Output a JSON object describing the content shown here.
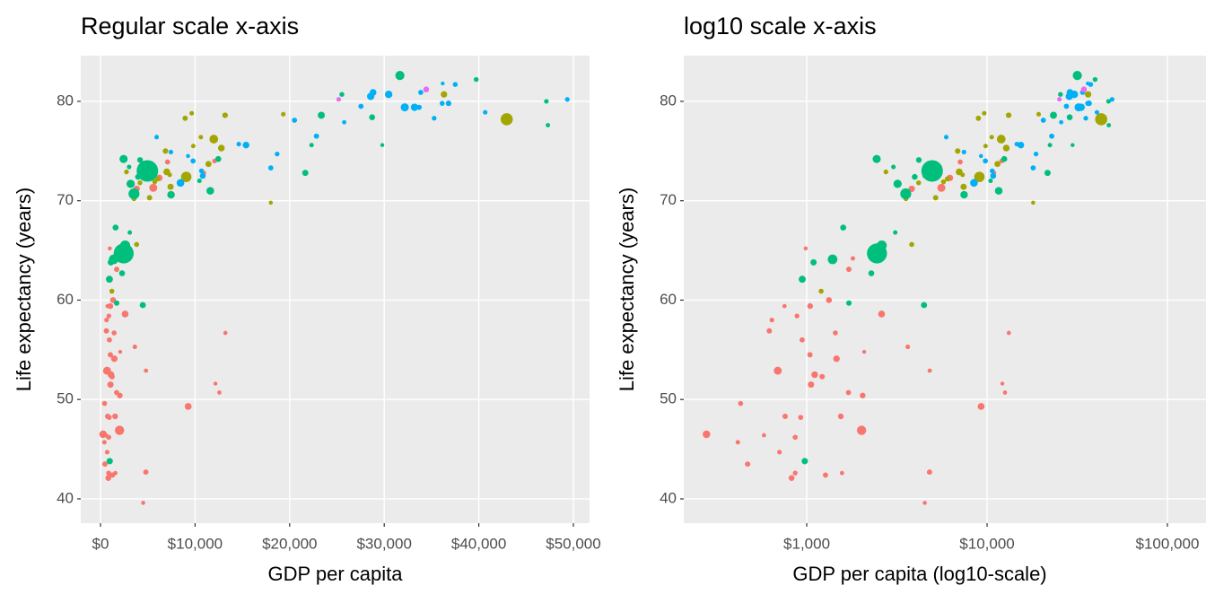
{
  "chart_data": [
    {
      "type": "scatter",
      "title": "Regular scale x-axis",
      "xlabel": "GDP per capita",
      "ylabel": "Life expectancy (years)",
      "xlim": [
        -2087,
        51708
      ],
      "ylim": [
        37.56,
        84.6
      ],
      "xticks": [
        {
          "value": 0,
          "label": "$0"
        },
        {
          "value": 10000,
          "label": "$10,000"
        },
        {
          "value": 20000,
          "label": "$20,000"
        },
        {
          "value": 30000,
          "label": "$30,000"
        },
        {
          "value": 40000,
          "label": "$40,000"
        },
        {
          "value": 50000,
          "label": "$50,000"
        }
      ],
      "yticks": [
        40,
        50,
        60,
        70,
        80
      ],
      "grid": true,
      "series": [
        {
          "color": "#F8766D",
          "x": [
            6223,
            4797,
            1441,
            12570,
            1217,
            430,
            2042,
            706,
            1704,
            986,
            278,
            3633,
            1545,
            2082,
            5581,
            12154,
            641,
            691,
            13206,
            753,
            1328,
            943,
            579,
            1463,
            1569,
            415,
            12057,
            1044,
            759,
            1042,
            1803,
            10957,
            3820,
            824,
            4811,
            620,
            2014,
            863,
            1712,
            863,
            926,
            9270,
            2602,
            4513,
            1107,
            883,
            7093,
            1056,
            1271,
            470
          ],
          "values": [
            72.3,
            42.7,
            56.7,
            50.7,
            52.3,
            49.6,
            50.4,
            44.7,
            50.7,
            65.2,
            46.5,
            55.3,
            48.3,
            54.8,
            71.3,
            51.6,
            58.0,
            52.9,
            56.7,
            59.4,
            60.0,
            56.0,
            46.4,
            54.1,
            42.6,
            45.7,
            74.0,
            59.4,
            48.3,
            54.5,
            64.2,
            72.8,
            71.2,
            42.1,
            52.9,
            56.9,
            46.9,
            46.2,
            63.1,
            42.6,
            48.2,
            49.3,
            58.6,
            39.6,
            52.5,
            58.4,
            73.9,
            51.5,
            42.4,
            43.5
          ],
          "sizes": [
            33,
            12,
            8,
            1.6,
            14,
            8,
            18,
            4,
            10,
            0.7,
            64,
            4,
            18,
            0.5,
            80,
            0.55,
            5,
            77,
            1.5,
            1.7,
            23,
            10,
            1.5,
            35,
            2,
            3,
            6,
            19,
            13,
            12,
            3,
            1.25,
            33,
            20,
            2,
            12.9,
            135,
            9,
            12,
            6,
            9,
            44,
            42,
            1.1,
            38,
            5.7,
            10,
            29,
            11.7,
            12
          ]
        },
        {
          "color": "#A3A500",
          "x": [
            12779,
            3822,
            9066,
            36319,
            13172,
            7007,
            9645,
            8948,
            6025,
            6873,
            5728,
            5186,
            1202,
            3548,
            7321,
            11978,
            2749,
            9809,
            4173,
            7409,
            19329,
            18009,
            42952,
            10611,
            11416
          ],
          "values": [
            75.3,
            65.6,
            72.4,
            80.7,
            78.6,
            72.9,
            78.8,
            78.3,
            72.2,
            75.0,
            71.9,
            70.3,
            60.9,
            70.2,
            72.6,
            76.2,
            72.9,
            75.5,
            71.8,
            71.4,
            78.7,
            69.8,
            78.2,
            76.4,
            73.7
          ],
          "sizes": [
            40,
            9,
            190,
            33,
            16,
            44,
            4,
            11,
            9,
            14,
            7,
            13,
            8.5,
            7.5,
            2.8,
            109,
            5.7,
            3.2,
            6.7,
            29,
            4,
            1,
            301,
            3.4,
            26
          ]
        },
        {
          "color": "#00BF7D",
          "x": [
            975,
            29796,
            1391,
            1714,
            4959,
            39725,
            2452,
            3541,
            11606,
            4471,
            25523,
            31656,
            4519,
            1593,
            23348,
            47307,
            10461,
            12452,
            3096,
            944,
            1091,
            22316,
            2606,
            3190,
            21655,
            47143,
            3970,
            4185,
            28718,
            7458,
            2442,
            3025,
            2281
          ],
          "values": [
            43.8,
            75.6,
            64.1,
            59.7,
            73.0,
            82.2,
            64.7,
            70.7,
            71.0,
            59.5,
            80.7,
            82.6,
            72.5,
            67.3,
            78.6,
            77.6,
            72.0,
            74.2,
            66.8,
            62.1,
            63.8,
            75.6,
            65.5,
            71.7,
            72.8,
            80.0,
            72.4,
            74.1,
            78.4,
            70.6,
            74.2,
            73.4,
            62.7
          ],
          "sizes": [
            32,
            0.7,
            150,
            14,
            1318,
            7,
            1110,
            224,
            69,
            27,
            6.4,
            127,
            6,
            23,
            49,
            2.5,
            3.9,
            24,
            2.9,
            47.8,
            28.9,
            3.2,
            169,
            91,
            27.6,
            4.5,
            20,
            19,
            23,
            65,
            85,
            4,
            22
          ]
        },
        {
          "color": "#00B0F6",
          "x": [
            5937,
            36126,
            33693,
            7446,
            10681,
            14619,
            22833,
            35278,
            33207,
            30470,
            32170,
            27538,
            18009,
            36181,
            40676,
            28570,
            9254,
            36798,
            49357,
            15390,
            20510,
            10808,
            9787,
            18678,
            25768,
            28821,
            33860,
            37506,
            8458,
            33203
          ],
          "values": [
            76.4,
            79.8,
            79.4,
            74.9,
            73.0,
            75.7,
            76.5,
            78.3,
            79.3,
            80.7,
            79.4,
            79.5,
            73.3,
            81.8,
            78.9,
            80.5,
            74.5,
            79.8,
            80.2,
            75.6,
            78.1,
            72.5,
            74.0,
            74.7,
            77.9,
            80.9,
            80.9,
            81.7,
            71.8,
            79.4
          ],
          "sizes": [
            3.6,
            8.2,
            10.4,
            4.5,
            7.3,
            4.5,
            10.2,
            5.5,
            5.2,
            61,
            82,
            10.7,
            10,
            0.3,
            4.1,
            58,
            0.7,
            16.6,
            4.6,
            38.5,
            10.6,
            22,
            10,
            5.4,
            2,
            40,
            9,
            7.5,
            71,
            60
          ]
        },
        {
          "color": "#E76BF3",
          "x": [
            34435,
            25185
          ],
          "values": [
            81.2,
            80.2
          ],
          "sizes": [
            20,
            4.1
          ]
        }
      ]
    },
    {
      "type": "scatter",
      "title": "log10 scale x-axis",
      "xlabel": "GDP per capita (log10-scale)",
      "ylabel": "Life expectancy (years)",
      "xscale": "log",
      "xlim": [
        208,
        163700
      ],
      "ylim": [
        37.56,
        84.6
      ],
      "xticks": [
        {
          "value": 1000,
          "label": "$1,000"
        },
        {
          "value": 10000,
          "label": "$10,000"
        },
        {
          "value": 100000,
          "label": "$100,000"
        }
      ],
      "yticks": [
        40,
        50,
        60,
        70,
        80
      ],
      "grid": true,
      "series": [
        {
          "color": "#F8766D",
          "x": [
            6223,
            4797,
            1441,
            12570,
            1217,
            430,
            2042,
            706,
            1704,
            986,
            278,
            3633,
            1545,
            2082,
            5581,
            12154,
            641,
            691,
            13206,
            753,
            1328,
            943,
            579,
            1463,
            1569,
            415,
            12057,
            1044,
            759,
            1042,
            1803,
            10957,
            3820,
            824,
            4811,
            620,
            2014,
            863,
            1712,
            863,
            926,
            9270,
            2602,
            4513,
            1107,
            883,
            7093,
            1056,
            1271,
            470
          ],
          "values": [
            72.3,
            42.7,
            56.7,
            50.7,
            52.3,
            49.6,
            50.4,
            44.7,
            50.7,
            65.2,
            46.5,
            55.3,
            48.3,
            54.8,
            71.3,
            51.6,
            58.0,
            52.9,
            56.7,
            59.4,
            60.0,
            56.0,
            46.4,
            54.1,
            42.6,
            45.7,
            74.0,
            59.4,
            48.3,
            54.5,
            64.2,
            72.8,
            71.2,
            42.1,
            52.9,
            56.9,
            46.9,
            46.2,
            63.1,
            42.6,
            48.2,
            49.3,
            58.6,
            39.6,
            52.5,
            58.4,
            73.9,
            51.5,
            42.4,
            43.5
          ],
          "sizes": [
            33,
            12,
            8,
            1.6,
            14,
            8,
            18,
            4,
            10,
            0.7,
            64,
            4,
            18,
            0.5,
            80,
            0.55,
            5,
            77,
            1.5,
            1.7,
            23,
            10,
            1.5,
            35,
            2,
            3,
            6,
            19,
            13,
            12,
            3,
            1.25,
            33,
            20,
            2,
            12.9,
            135,
            9,
            12,
            6,
            9,
            44,
            42,
            1.1,
            38,
            5.7,
            10,
            29,
            11.7,
            12
          ]
        },
        {
          "color": "#A3A500",
          "x": [
            12779,
            3822,
            9066,
            36319,
            13172,
            7007,
            9645,
            8948,
            6025,
            6873,
            5728,
            5186,
            1202,
            3548,
            7321,
            11978,
            2749,
            9809,
            4173,
            7409,
            19329,
            18009,
            42952,
            10611,
            11416
          ],
          "values": [
            75.3,
            65.6,
            72.4,
            80.7,
            78.6,
            72.9,
            78.8,
            78.3,
            72.2,
            75.0,
            71.9,
            70.3,
            60.9,
            70.2,
            72.6,
            76.2,
            72.9,
            75.5,
            71.8,
            71.4,
            78.7,
            69.8,
            78.2,
            76.4,
            73.7
          ],
          "sizes": [
            40,
            9,
            190,
            33,
            16,
            44,
            4,
            11,
            9,
            14,
            7,
            13,
            8.5,
            7.5,
            2.8,
            109,
            5.7,
            3.2,
            6.7,
            29,
            4,
            1,
            301,
            3.4,
            26
          ]
        },
        {
          "color": "#00BF7D",
          "x": [
            975,
            29796,
            1391,
            1714,
            4959,
            39725,
            2452,
            3541,
            11606,
            4471,
            25523,
            31656,
            4519,
            1593,
            23348,
            47307,
            10461,
            12452,
            3096,
            944,
            1091,
            22316,
            2606,
            3190,
            21655,
            47143,
            3970,
            4185,
            28718,
            7458,
            2442,
            3025,
            2281
          ],
          "values": [
            43.8,
            75.6,
            64.1,
            59.7,
            73.0,
            82.2,
            64.7,
            70.7,
            71.0,
            59.5,
            80.7,
            82.6,
            72.5,
            67.3,
            78.6,
            77.6,
            72.0,
            74.2,
            66.8,
            62.1,
            63.8,
            75.6,
            65.5,
            71.7,
            72.8,
            80.0,
            72.4,
            74.1,
            78.4,
            70.6,
            74.2,
            73.4,
            62.7
          ],
          "sizes": [
            32,
            0.7,
            150,
            14,
            1318,
            7,
            1110,
            224,
            69,
            27,
            6.4,
            127,
            6,
            23,
            49,
            2.5,
            3.9,
            24,
            2.9,
            47.8,
            28.9,
            3.2,
            169,
            91,
            27.6,
            4.5,
            20,
            19,
            23,
            65,
            85,
            4,
            22
          ]
        },
        {
          "color": "#00B0F6",
          "x": [
            5937,
            36126,
            33693,
            7446,
            10681,
            14619,
            22833,
            35278,
            33207,
            30470,
            32170,
            27538,
            18009,
            36181,
            40676,
            28570,
            9254,
            36798,
            49357,
            15390,
            20510,
            10808,
            9787,
            18678,
            25768,
            28821,
            33860,
            37506,
            8458,
            33203
          ],
          "values": [
            76.4,
            79.8,
            79.4,
            74.9,
            73.0,
            75.7,
            76.5,
            78.3,
            79.3,
            80.7,
            79.4,
            79.5,
            73.3,
            81.8,
            78.9,
            80.5,
            74.5,
            79.8,
            80.2,
            75.6,
            78.1,
            72.5,
            74.0,
            74.7,
            77.9,
            80.9,
            80.9,
            81.7,
            71.8,
            79.4
          ],
          "sizes": [
            3.6,
            8.2,
            10.4,
            4.5,
            7.3,
            4.5,
            10.2,
            5.5,
            5.2,
            61,
            82,
            10.7,
            10,
            0.3,
            4.1,
            58,
            0.7,
            16.6,
            4.6,
            38.5,
            10.6,
            22,
            10,
            5.4,
            2,
            40,
            9,
            7.5,
            71,
            60
          ]
        },
        {
          "color": "#E76BF3",
          "x": [
            34435,
            25185
          ],
          "values": [
            81.2,
            80.2
          ],
          "sizes": [
            20,
            4.1
          ]
        }
      ]
    }
  ]
}
